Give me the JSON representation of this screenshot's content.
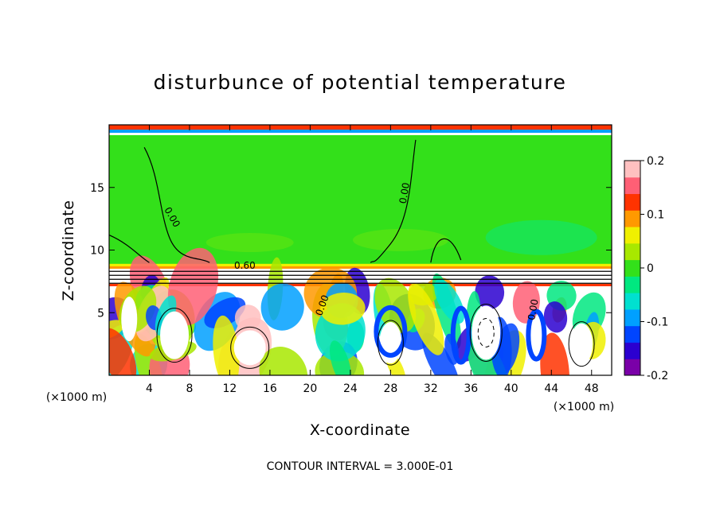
{
  "chart_data": {
    "type": "heatmap",
    "title": "disturbunce of potential temperature",
    "xlabel": "X-coordinate",
    "ylabel": "Z-coordinate",
    "x_unit_left": "(×1000 m)",
    "x_unit_right": "(×1000 m)",
    "xlim": [
      0,
      50
    ],
    "ylim": [
      0,
      20
    ],
    "xticks": [
      4,
      8,
      12,
      16,
      20,
      24,
      28,
      32,
      36,
      40,
      44,
      48
    ],
    "yticks": [
      5,
      10,
      15
    ],
    "colorbar": {
      "range": [
        -0.2,
        0.2
      ],
      "tick_labels": [
        "0.2",
        "0.1",
        "0",
        "-0.1",
        "-0.2"
      ],
      "tick_values": [
        0.2,
        0.1,
        0,
        -0.1,
        -0.2
      ]
    },
    "contour_labels": [
      "0.00",
      "0.00",
      "0.60",
      "0.00",
      "0.00"
    ],
    "note": "CONTOUR INTERVAL = 3.000E-01"
  },
  "colors": {
    "upper_layer": "#33e01a",
    "lower_background": "#ffffff",
    "colormap": [
      "#7a00a8",
      "#2b00d0",
      "#0045ff",
      "#00a0ff",
      "#00e0d0",
      "#00e880",
      "#33e01a",
      "#a8e800",
      "#f0f000",
      "#ff9900",
      "#ff3300",
      "#ff5f75",
      "#ffc0c0"
    ]
  }
}
